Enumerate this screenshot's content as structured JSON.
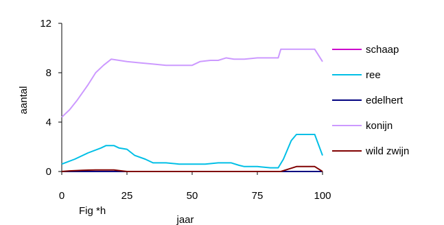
{
  "chart_data": {
    "type": "line",
    "xlabel": "jaar",
    "ylabel": "aantal",
    "caption": "Fig *h",
    "xlim": [
      0,
      100
    ],
    "ylim": [
      0,
      12
    ],
    "xticks": [
      "0",
      "25",
      "50",
      "75",
      "100"
    ],
    "yticks": [
      "0",
      "4",
      "8",
      "12"
    ],
    "xtick_values": [
      0,
      25,
      50,
      75,
      100
    ],
    "ytick_values": [
      0,
      4,
      8,
      12
    ],
    "grid": false,
    "legend_position": "right",
    "series": [
      {
        "name": "schaap",
        "color": "#cc00cc",
        "points": [
          [
            0,
            0
          ],
          [
            100,
            0
          ]
        ]
      },
      {
        "name": "ree",
        "color": "#00bfe6",
        "points": [
          [
            0,
            0.6
          ],
          [
            5,
            1.0
          ],
          [
            10,
            1.5
          ],
          [
            15,
            1.9
          ],
          [
            17,
            2.1
          ],
          [
            20,
            2.1
          ],
          [
            22,
            1.9
          ],
          [
            25,
            1.8
          ],
          [
            28,
            1.3
          ],
          [
            32,
            1.0
          ],
          [
            35,
            0.7
          ],
          [
            40,
            0.7
          ],
          [
            45,
            0.6
          ],
          [
            50,
            0.6
          ],
          [
            55,
            0.6
          ],
          [
            60,
            0.7
          ],
          [
            65,
            0.7
          ],
          [
            68,
            0.5
          ],
          [
            70,
            0.4
          ],
          [
            75,
            0.4
          ],
          [
            80,
            0.3
          ],
          [
            83,
            0.3
          ],
          [
            85,
            1.0
          ],
          [
            88,
            2.5
          ],
          [
            90,
            3.0
          ],
          [
            97,
            3.0
          ],
          [
            100,
            1.3
          ]
        ]
      },
      {
        "name": "edelhert",
        "color": "#000080",
        "points": [
          [
            0,
            0
          ],
          [
            100,
            0
          ]
        ]
      },
      {
        "name": "konijn",
        "color": "#cc99ff",
        "points": [
          [
            0,
            4.4
          ],
          [
            3,
            5.0
          ],
          [
            6,
            5.8
          ],
          [
            10,
            7.0
          ],
          [
            13,
            8.0
          ],
          [
            16,
            8.6
          ],
          [
            19,
            9.1
          ],
          [
            22,
            9.0
          ],
          [
            25,
            8.9
          ],
          [
            30,
            8.8
          ],
          [
            35,
            8.7
          ],
          [
            40,
            8.6
          ],
          [
            45,
            8.6
          ],
          [
            50,
            8.6
          ],
          [
            53,
            8.9
          ],
          [
            57,
            9.0
          ],
          [
            60,
            9.0
          ],
          [
            63,
            9.2
          ],
          [
            66,
            9.1
          ],
          [
            70,
            9.1
          ],
          [
            75,
            9.2
          ],
          [
            80,
            9.2
          ],
          [
            83,
            9.2
          ],
          [
            84,
            9.9
          ],
          [
            90,
            9.9
          ],
          [
            97,
            9.9
          ],
          [
            100,
            8.9
          ]
        ]
      },
      {
        "name": "wild zwijn",
        "color": "#800000",
        "points": [
          [
            0,
            0
          ],
          [
            3,
            0.05
          ],
          [
            8,
            0.1
          ],
          [
            13,
            0.12
          ],
          [
            20,
            0.12
          ],
          [
            23,
            0.05
          ],
          [
            25,
            0
          ],
          [
            84,
            0
          ],
          [
            87,
            0.2
          ],
          [
            90,
            0.4
          ],
          [
            97,
            0.4
          ],
          [
            100,
            0
          ]
        ]
      }
    ]
  }
}
